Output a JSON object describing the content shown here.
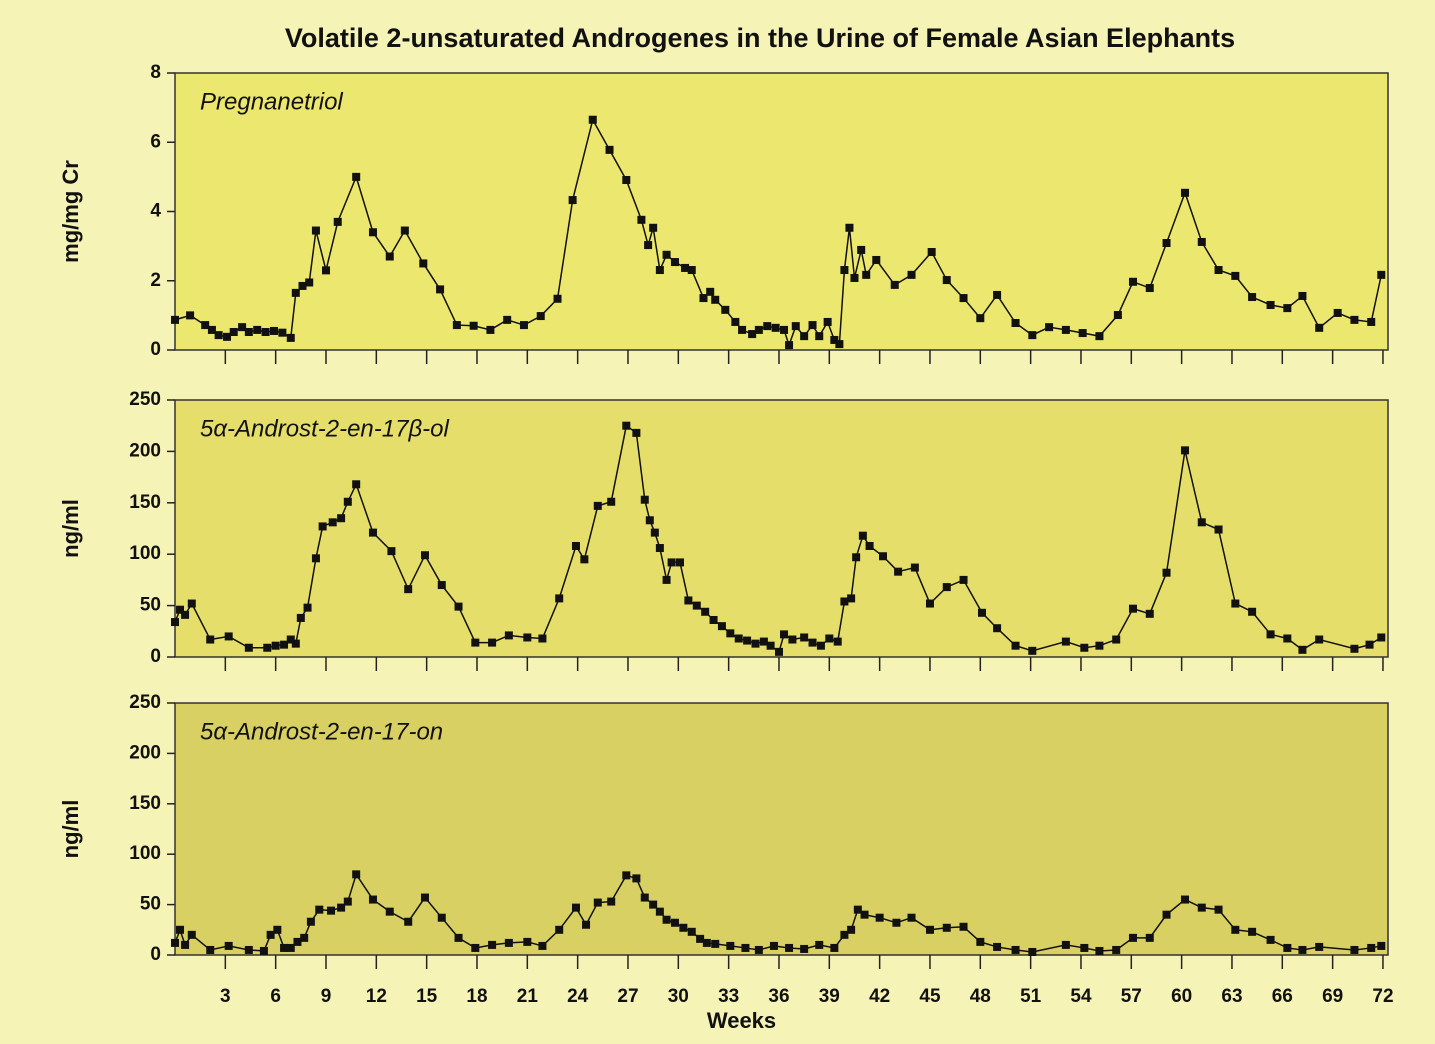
{
  "chart_data": [
    {
      "type": "line",
      "title": "Volatile 2-unsaturated Androgenes in the Urine of Female Asian Elephants",
      "annotation": "Pregnanetriol",
      "ylabel": "mg/mg Cr",
      "color": "#111111",
      "xlim": [
        0,
        72.3
      ],
      "ylim": [
        0,
        8
      ],
      "yticks": [
        0,
        2,
        4,
        6,
        8
      ],
      "x": [
        0,
        0.9,
        1.8,
        2.2,
        2.6,
        3.1,
        3.5,
        4,
        4.4,
        4.9,
        5.4,
        5.9,
        6.4,
        6.9,
        7.2,
        7.6,
        8,
        8.4,
        9,
        9.7,
        10.8,
        11.8,
        12.8,
        13.7,
        14.8,
        15.8,
        16.8,
        17.8,
        18.8,
        19.8,
        20.8,
        21.8,
        22.8,
        23.7,
        24.9,
        25.9,
        26.9,
        27.8,
        28.2,
        28.5,
        28.9,
        29.3,
        29.8,
        30.4,
        30.8,
        31.5,
        31.9,
        32.2,
        32.8,
        33.4,
        33.8,
        34.4,
        34.8,
        35.3,
        35.8,
        36.3,
        36.6,
        37,
        37.5,
        38,
        38.4,
        38.9,
        39.3,
        39.6,
        39.9,
        40.2,
        40.5,
        40.9,
        41.2,
        41.8,
        42.9,
        43.9,
        45.1,
        46,
        47,
        48,
        49,
        50.1,
        51.1,
        52.1,
        53.1,
        54.1,
        55.1,
        56.2,
        57.1,
        58.1,
        59.1,
        60.2,
        61.2,
        62.2,
        63.2,
        64.2,
        65.3,
        66.3,
        67.2,
        68.2,
        69.3,
        70.3,
        71.3,
        71.9
      ],
      "values": [
        0.87,
        1.0,
        0.72,
        0.58,
        0.43,
        0.38,
        0.52,
        0.66,
        0.52,
        0.58,
        0.52,
        0.55,
        0.5,
        0.35,
        1.65,
        1.85,
        1.95,
        3.45,
        2.3,
        3.7,
        5.0,
        3.4,
        2.7,
        3.45,
        2.5,
        1.75,
        0.72,
        0.7,
        0.58,
        0.87,
        0.72,
        0.98,
        1.48,
        4.33,
        6.65,
        5.78,
        4.91,
        3.76,
        3.03,
        3.53,
        2.31,
        2.75,
        2.54,
        2.37,
        2.31,
        1.5,
        1.68,
        1.45,
        1.16,
        0.81,
        0.58,
        0.46,
        0.58,
        0.69,
        0.64,
        0.58,
        0.14,
        0.69,
        0.4,
        0.72,
        0.4,
        0.81,
        0.29,
        0.17,
        2.31,
        3.53,
        2.08,
        2.89,
        2.17,
        2.6,
        1.88,
        2.17,
        2.83,
        2.02,
        1.5,
        0.92,
        1.59,
        0.78,
        0.43,
        0.66,
        0.58,
        0.49,
        0.4,
        1.01,
        1.97,
        1.79,
        3.09,
        4.54,
        3.12,
        2.31,
        2.14,
        1.53,
        1.3,
        1.21,
        1.56,
        0.64,
        1.07,
        0.87,
        0.81,
        2.17
      ]
    },
    {
      "type": "line",
      "annotation": "5α-Androst-2-en-17β-ol",
      "ylabel": "ng/ml",
      "color": "#111111",
      "xlim": [
        0,
        72.3
      ],
      "ylim": [
        0,
        250
      ],
      "yticks": [
        0,
        50,
        100,
        150,
        200,
        250
      ],
      "x": [
        0,
        0.3,
        0.6,
        1,
        2.1,
        3.2,
        4.4,
        5.5,
        6,
        6.5,
        6.9,
        7.2,
        7.5,
        7.9,
        8.4,
        8.8,
        9.4,
        9.9,
        10.3,
        10.8,
        11.8,
        12.9,
        13.9,
        14.9,
        15.9,
        16.9,
        17.9,
        18.9,
        19.9,
        21,
        21.9,
        22.9,
        23.9,
        24.4,
        25.2,
        26,
        26.9,
        27.5,
        28,
        28.3,
        28.6,
        28.9,
        29.3,
        29.6,
        30.1,
        30.6,
        31.1,
        31.6,
        32.1,
        32.6,
        33.1,
        33.6,
        34.1,
        34.6,
        35.1,
        35.5,
        36,
        36.3,
        36.8,
        37.5,
        38,
        38.5,
        39,
        39.5,
        39.9,
        40.3,
        40.6,
        41,
        41.4,
        42.2,
        43.1,
        44.1,
        45,
        46,
        47,
        48.1,
        49,
        50.1,
        51.1,
        53.1,
        54.2,
        55.1,
        56.1,
        57.1,
        58.1,
        59.1,
        60.2,
        61.2,
        62.2,
        63.2,
        64.2,
        65.3,
        66.3,
        67.2,
        68.2,
        70.3,
        71.2,
        71.9
      ],
      "values": [
        34,
        46,
        41,
        52,
        17,
        20,
        9,
        9,
        11,
        12,
        17,
        13,
        38,
        48,
        96,
        127,
        131,
        135,
        151,
        168,
        121,
        103,
        66,
        99,
        70,
        49,
        14,
        14,
        21,
        19,
        18,
        57,
        108,
        95,
        147,
        151,
        225,
        218,
        153,
        133,
        121,
        106,
        75,
        92,
        92,
        55,
        50,
        44,
        36,
        30,
        23,
        18,
        16,
        13,
        15,
        11,
        5,
        22,
        17,
        19,
        14,
        11,
        18,
        15,
        54,
        57,
        97,
        118,
        108,
        98,
        83,
        87,
        52,
        68,
        75,
        43,
        28,
        11,
        6,
        15,
        9,
        11,
        17,
        47,
        42,
        82,
        201,
        131,
        124,
        52,
        44,
        22,
        18,
        7,
        17,
        8,
        12,
        19
      ]
    },
    {
      "type": "line",
      "annotation": "5α-Androst-2-en-17-on",
      "ylabel": "ng/ml",
      "xlabel": "Weeks",
      "color": "#111111",
      "xlim": [
        0,
        72.3
      ],
      "ylim": [
        0,
        250
      ],
      "yticks": [
        0,
        50,
        100,
        150,
        200,
        250
      ],
      "xticks": [
        3,
        6,
        9,
        12,
        15,
        18,
        21,
        24,
        27,
        30,
        33,
        36,
        39,
        42,
        45,
        48,
        51,
        54,
        57,
        60,
        63,
        66,
        69,
        72
      ],
      "x": [
        0,
        0.3,
        0.6,
        1,
        2.1,
        3.2,
        4.4,
        5.3,
        5.7,
        6.1,
        6.5,
        6.9,
        7.3,
        7.7,
        8.1,
        8.6,
        9.3,
        9.9,
        10.3,
        10.8,
        11.8,
        12.8,
        13.9,
        14.9,
        15.9,
        16.9,
        17.9,
        18.9,
        19.9,
        21,
        21.9,
        22.9,
        23.9,
        24.5,
        25.2,
        26,
        26.9,
        27.5,
        28,
        28.5,
        28.9,
        29.3,
        29.8,
        30.3,
        30.8,
        31.3,
        31.7,
        32.2,
        33.1,
        34,
        34.8,
        35.7,
        36.6,
        37.5,
        38.4,
        39.3,
        39.9,
        40.3,
        40.7,
        41.1,
        42,
        43,
        43.9,
        45,
        46,
        47,
        48,
        49,
        50.1,
        51.1,
        53.1,
        54.2,
        55.1,
        56.1,
        57.1,
        58.1,
        59.1,
        60.2,
        61.2,
        62.2,
        63.2,
        64.2,
        65.3,
        66.3,
        67.2,
        68.2,
        70.3,
        71.3,
        71.9
      ],
      "values": [
        12,
        25,
        10,
        20,
        5,
        9,
        5,
        4,
        20,
        25,
        7,
        7,
        13,
        17,
        33,
        45,
        44,
        47,
        53,
        80,
        55,
        43,
        33,
        57,
        37,
        17,
        7,
        10,
        12,
        13,
        9,
        25,
        47,
        30,
        52,
        53,
        79,
        76,
        57,
        50,
        43,
        35,
        32,
        27,
        23,
        16,
        12,
        11,
        9,
        7,
        5,
        9,
        7,
        6,
        10,
        7,
        20,
        25,
        45,
        40,
        37,
        32,
        37,
        25,
        27,
        28,
        13,
        8,
        5,
        3,
        10,
        7,
        4,
        5,
        17,
        17,
        40,
        55,
        47,
        45,
        25,
        23,
        15,
        7,
        5,
        8,
        5,
        7,
        9
      ]
    }
  ]
}
